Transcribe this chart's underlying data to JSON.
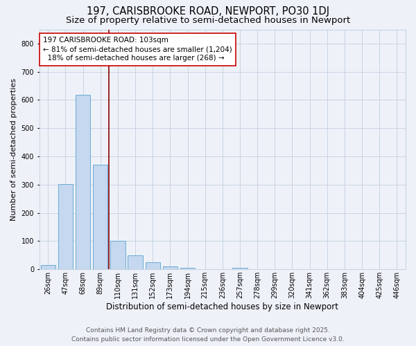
{
  "title": "197, CARISBROOKE ROAD, NEWPORT, PO30 1DJ",
  "subtitle": "Size of property relative to semi-detached houses in Newport",
  "xlabel": "Distribution of semi-detached houses by size in Newport",
  "ylabel": "Number of semi-detached properties",
  "bar_labels": [
    "26sqm",
    "47sqm",
    "68sqm",
    "89sqm",
    "110sqm",
    "131sqm",
    "152sqm",
    "173sqm",
    "194sqm",
    "215sqm",
    "236sqm",
    "257sqm",
    "278sqm",
    "299sqm",
    "320sqm",
    "341sqm",
    "362sqm",
    "383sqm",
    "404sqm",
    "425sqm",
    "446sqm"
  ],
  "bar_values": [
    15,
    302,
    619,
    370,
    100,
    50,
    25,
    11,
    5,
    0,
    0,
    6,
    0,
    0,
    0,
    0,
    0,
    0,
    0,
    0,
    0
  ],
  "bar_color": "#c5d8ef",
  "bar_edgecolor": "#6aaad4",
  "background_color": "#eef2f8",
  "grid_color": "#c8d4e4",
  "vline_x_index": 4,
  "vline_color": "#8b0000",
  "annotation_line1": "197 CARISBROOKE ROAD: 103sqm",
  "annotation_line2": "← 81% of semi-detached houses are smaller (1,204)",
  "annotation_line3": "  18% of semi-detached houses are larger (268) →",
  "annotation_box_color": "#ffffff",
  "annotation_box_edgecolor": "#cc0000",
  "ylim": [
    0,
    850
  ],
  "yticks": [
    0,
    100,
    200,
    300,
    400,
    500,
    600,
    700,
    800
  ],
  "footer_line1": "Contains HM Land Registry data © Crown copyright and database right 2025.",
  "footer_line2": "Contains public sector information licensed under the Open Government Licence v3.0.",
  "title_fontsize": 10.5,
  "subtitle_fontsize": 9.5,
  "xlabel_fontsize": 8.5,
  "ylabel_fontsize": 8,
  "tick_fontsize": 7,
  "annotation_fontsize": 7.5,
  "footer_fontsize": 6.5
}
